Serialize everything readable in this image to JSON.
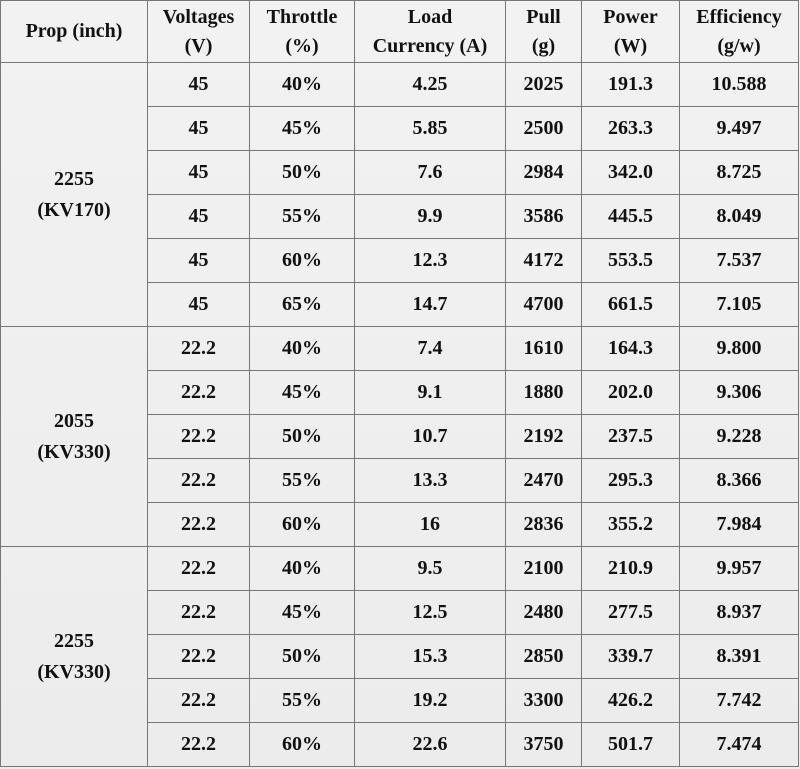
{
  "headers": {
    "prop_l1": "Prop (inch)",
    "volt_l1": "Voltages",
    "volt_l2": "(V)",
    "thr_l1": "Throttle",
    "thr_l2": "(%)",
    "load_l1": "Load",
    "load_l2": "Currency (A)",
    "pull_l1": "Pull",
    "pull_l2": "(g)",
    "pow_l1": "Power",
    "pow_l2": "(W)",
    "eff_l1": "Efficiency",
    "eff_l2": "(g/w)"
  },
  "groups": [
    {
      "prop_l1": "2255",
      "prop_l2": "(KV170)",
      "rows": [
        {
          "voltage": "45",
          "throttle": "40%",
          "load": "4.25",
          "pull": "2025",
          "power": "191.3",
          "efficiency": "10.588"
        },
        {
          "voltage": "45",
          "throttle": "45%",
          "load": "5.85",
          "pull": "2500",
          "power": "263.3",
          "efficiency": "9.497"
        },
        {
          "voltage": "45",
          "throttle": "50%",
          "load": "7.6",
          "pull": "2984",
          "power": "342.0",
          "efficiency": "8.725"
        },
        {
          "voltage": "45",
          "throttle": "55%",
          "load": "9.9",
          "pull": "3586",
          "power": "445.5",
          "efficiency": "8.049"
        },
        {
          "voltage": "45",
          "throttle": "60%",
          "load": "12.3",
          "pull": "4172",
          "power": "553.5",
          "efficiency": "7.537"
        },
        {
          "voltage": "45",
          "throttle": "65%",
          "load": "14.7",
          "pull": "4700",
          "power": "661.5",
          "efficiency": "7.105"
        }
      ]
    },
    {
      "prop_l1": "2055",
      "prop_l2": "(KV330)",
      "rows": [
        {
          "voltage": "22.2",
          "throttle": "40%",
          "load": "7.4",
          "pull": "1610",
          "power": "164.3",
          "efficiency": "9.800"
        },
        {
          "voltage": "22.2",
          "throttle": "45%",
          "load": "9.1",
          "pull": "1880",
          "power": "202.0",
          "efficiency": "9.306"
        },
        {
          "voltage": "22.2",
          "throttle": "50%",
          "load": "10.7",
          "pull": "2192",
          "power": "237.5",
          "efficiency": "9.228"
        },
        {
          "voltage": "22.2",
          "throttle": "55%",
          "load": "13.3",
          "pull": "2470",
          "power": "295.3",
          "efficiency": "8.366"
        },
        {
          "voltage": "22.2",
          "throttle": "60%",
          "load": "16",
          "pull": "2836",
          "power": "355.2",
          "efficiency": "7.984"
        }
      ]
    },
    {
      "prop_l1": "2255",
      "prop_l2": "(KV330)",
      "rows": [
        {
          "voltage": "22.2",
          "throttle": "40%",
          "load": "9.5",
          "pull": "2100",
          "power": "210.9",
          "efficiency": "9.957"
        },
        {
          "voltage": "22.2",
          "throttle": "45%",
          "load": "12.5",
          "pull": "2480",
          "power": "277.5",
          "efficiency": "8.937"
        },
        {
          "voltage": "22.2",
          "throttle": "50%",
          "load": "15.3",
          "pull": "2850",
          "power": "339.7",
          "efficiency": "8.391"
        },
        {
          "voltage": "22.2",
          "throttle": "55%",
          "load": "19.2",
          "pull": "3300",
          "power": "426.2",
          "efficiency": "7.742"
        },
        {
          "voltage": "22.2",
          "throttle": "60%",
          "load": "22.6",
          "pull": "3750",
          "power": "501.7",
          "efficiency": "7.474"
        }
      ]
    }
  ]
}
